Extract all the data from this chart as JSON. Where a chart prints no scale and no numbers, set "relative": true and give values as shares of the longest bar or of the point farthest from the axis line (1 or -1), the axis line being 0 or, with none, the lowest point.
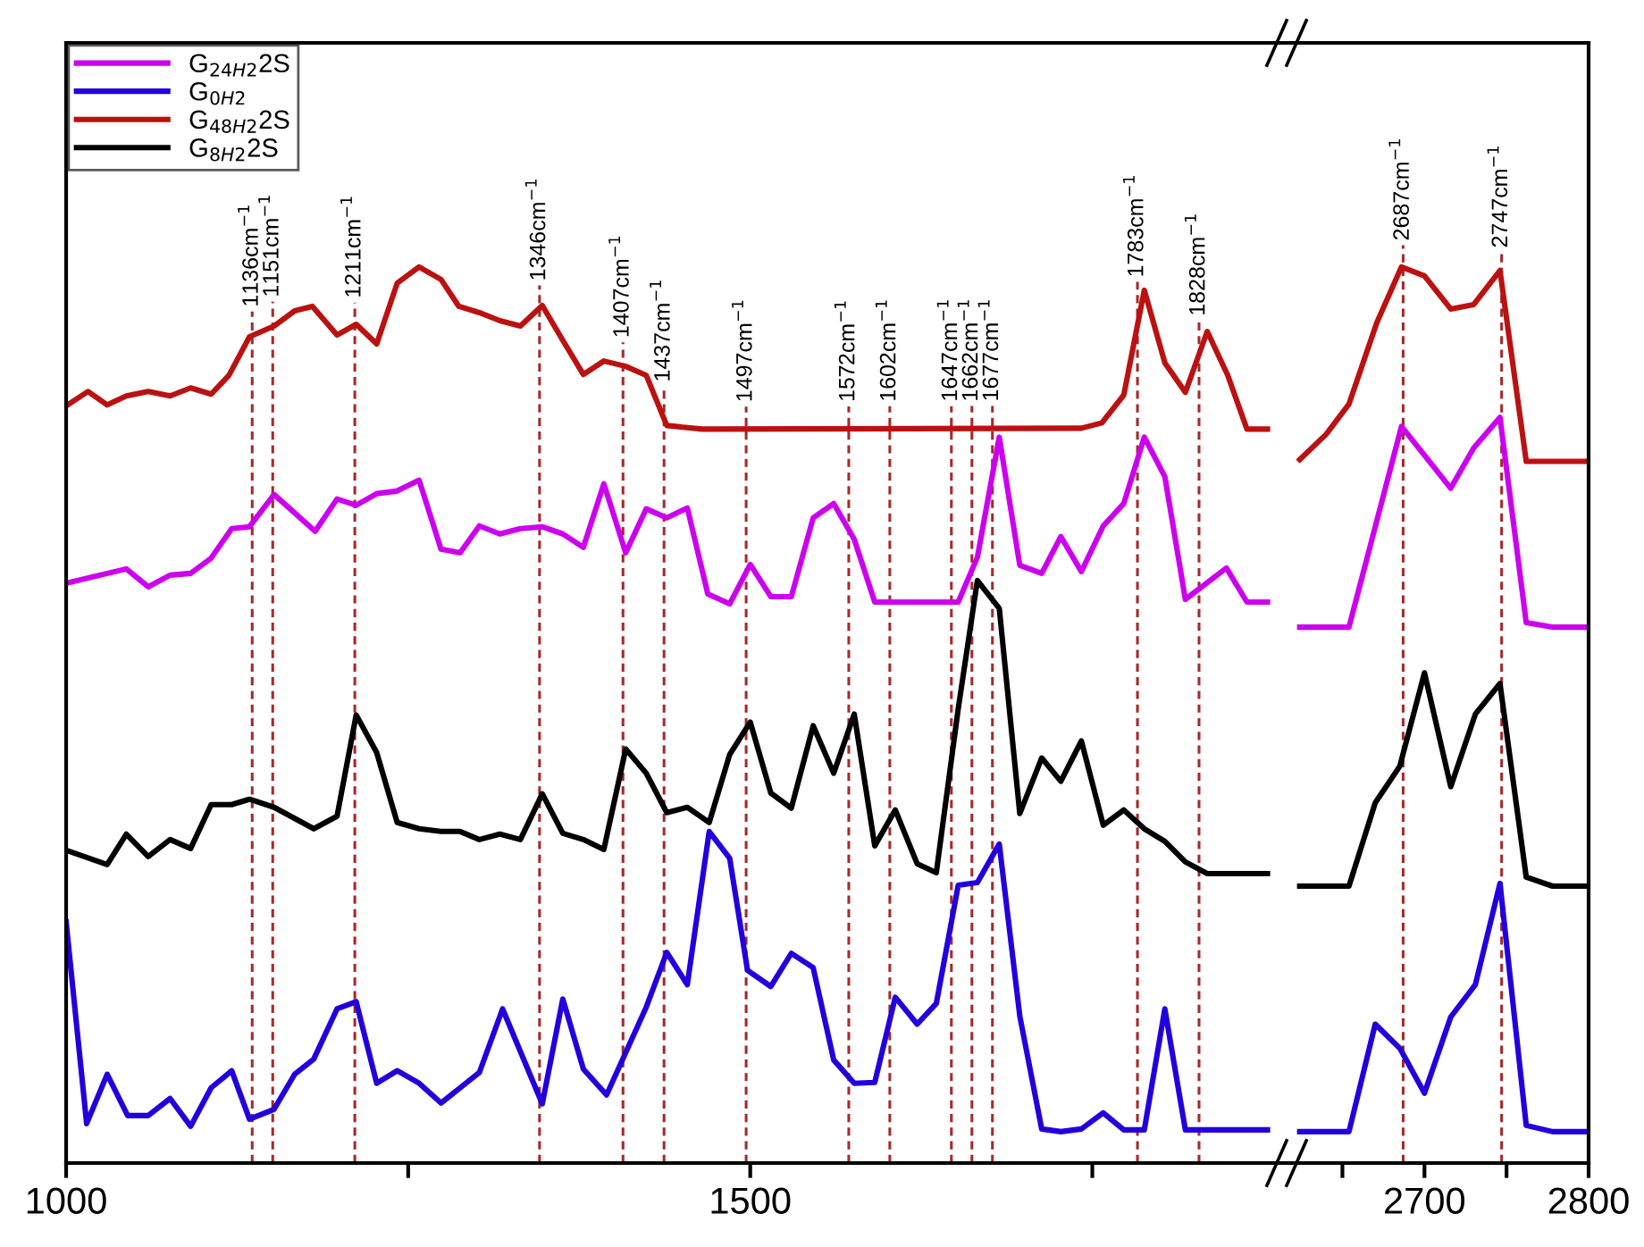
{
  "chart_data": [
    {
      "type": "line",
      "relative": true,
      "legend": "top left",
      "line_style": "solid",
      "marker": "none",
      "grid": false,
      "xlim": [
        1000,
        1892
      ],
      "xticks": [
        1000,
        {
          "value": 1250,
          "label": null
        },
        1500,
        {
          "value": 1750,
          "label": null
        }
      ],
      "series": [
        {
          "name": "G$_{24H2}$2S",
          "color": "#cc00ee",
          "x": [
            1000,
            1044,
            1060,
            1076,
            1091,
            1106,
            1121,
            1134,
            1152,
            1182,
            1198,
            1212,
            1227,
            1242,
            1258,
            1274,
            1288,
            1302,
            1317,
            1332,
            1348,
            1363,
            1378,
            1393,
            1409,
            1424,
            1439,
            1454,
            1469,
            1485,
            1500,
            1515,
            1530,
            1546,
            1561,
            1576,
            1591,
            1652,
            1666,
            1682,
            1697,
            1713,
            1727,
            1742,
            1758,
            1773,
            1788,
            1803,
            1818,
            1848,
            1863,
            1878
          ],
          "values": [
            0.647,
            0.663,
            0.643,
            0.656,
            0.658,
            0.675,
            0.708,
            0.71,
            0.746,
            0.705,
            0.741,
            0.734,
            0.747,
            0.75,
            0.762,
            0.685,
            0.681,
            0.711,
            0.702,
            0.708,
            0.71,
            0.702,
            0.687,
            0.758,
            0.681,
            0.73,
            0.72,
            0.731,
            0.635,
            0.624,
            0.668,
            0.632,
            0.632,
            0.72,
            0.736,
            0.696,
            0.626,
            0.626,
            0.676,
            0.81,
            0.667,
            0.658,
            0.699,
            0.66,
            0.711,
            0.736,
            0.81,
            0.766,
            0.629,
            0.664,
            0.626,
            0.626
          ]
        },
        {
          "name": "G$_{0H2}$",
          "color": "#2200dd",
          "x": [
            1000,
            1015,
            1030,
            1045,
            1060,
            1076,
            1091,
            1106,
            1121,
            1134,
            1152,
            1167,
            1181,
            1198,
            1212,
            1227,
            1242,
            1258,
            1274,
            1302,
            1319,
            1348,
            1363,
            1378,
            1395,
            1424,
            1439,
            1454,
            1470,
            1485,
            1498,
            1515,
            1530,
            1546,
            1561,
            1576,
            1591,
            1606,
            1622,
            1636,
            1652,
            1666,
            1682,
            1697,
            1713,
            1727,
            1742,
            1758,
            1773,
            1788,
            1803,
            1818,
            1878
          ],
          "values": [
            0.269,
            0.044,
            0.099,
            0.053,
            0.053,
            0.072,
            0.041,
            0.084,
            0.103,
            0.049,
            0.06,
            0.099,
            0.116,
            0.172,
            0.18,
            0.089,
            0.103,
            0.089,
            0.067,
            0.101,
            0.172,
            0.066,
            0.183,
            0.105,
            0.076,
            0.174,
            0.235,
            0.199,
            0.37,
            0.34,
            0.215,
            0.197,
            0.234,
            0.218,
            0.115,
            0.089,
            0.09,
            0.185,
            0.155,
            0.178,
            0.31,
            0.313,
            0.356,
            0.164,
            0.038,
            0.035,
            0.038,
            0.056,
            0.037,
            0.037,
            0.172,
            0.037,
            0.037
          ]
        },
        {
          "name": "G$_{48H2}$2S",
          "color": "#bb1111",
          "x": [
            1000,
            1016,
            1030,
            1044,
            1060,
            1076,
            1091,
            1106,
            1119,
            1134,
            1152,
            1167,
            1180,
            1198,
            1212,
            1227,
            1242,
            1258,
            1274,
            1287,
            1302,
            1317,
            1332,
            1348,
            1363,
            1378,
            1393,
            1409,
            1424,
            1439,
            1465,
            1742,
            1757,
            1773,
            1788,
            1803,
            1818,
            1834,
            1849,
            1863,
            1878
          ],
          "values": [
            0.845,
            0.861,
            0.846,
            0.856,
            0.861,
            0.856,
            0.865,
            0.858,
            0.879,
            0.922,
            0.934,
            0.951,
            0.956,
            0.924,
            0.936,
            0.914,
            0.982,
            1.0,
            0.986,
            0.956,
            0.949,
            0.94,
            0.934,
            0.957,
            0.918,
            0.88,
            0.895,
            0.889,
            0.879,
            0.823,
            0.819,
            0.82,
            0.826,
            0.857,
            0.974,
            0.893,
            0.86,
            0.928,
            0.879,
            0.819,
            0.819
          ]
        },
        {
          "name": "G$_{8H2}$2S",
          "color": "#000000",
          "x": [
            1000,
            1030,
            1044,
            1060,
            1076,
            1091,
            1106,
            1121,
            1134,
            1152,
            1181,
            1198,
            1212,
            1227,
            1242,
            1258,
            1274,
            1288,
            1302,
            1317,
            1332,
            1348,
            1363,
            1378,
            1393,
            1409,
            1424,
            1439,
            1454,
            1470,
            1485,
            1500,
            1515,
            1530,
            1546,
            1561,
            1576,
            1591,
            1606,
            1622,
            1636,
            1652,
            1666,
            1682,
            1697,
            1713,
            1727,
            1742,
            1758,
            1773,
            1788,
            1803,
            1818,
            1834,
            1878
          ],
          "values": [
            0.349,
            0.333,
            0.367,
            0.342,
            0.361,
            0.351,
            0.4,
            0.4,
            0.406,
            0.397,
            0.373,
            0.387,
            0.5,
            0.458,
            0.38,
            0.373,
            0.37,
            0.37,
            0.361,
            0.367,
            0.361,
            0.412,
            0.368,
            0.361,
            0.35,
            0.462,
            0.435,
            0.391,
            0.397,
            0.38,
            0.456,
            0.492,
            0.413,
            0.396,
            0.488,
            0.435,
            0.501,
            0.354,
            0.394,
            0.334,
            0.324,
            0.507,
            0.65,
            0.619,
            0.39,
            0.452,
            0.426,
            0.471,
            0.377,
            0.394,
            0.373,
            0.359,
            0.336,
            0.323,
            0.323
          ]
        }
      ],
      "ref_lines": [
        {
          "axis": "x",
          "value": 1136,
          "label": "1136cm$^{−1}$",
          "color": "#a52a2a",
          "line_style": "dashed"
        },
        {
          "axis": "x",
          "value": 1151,
          "label": "1151cm$^{−1}$",
          "color": "#a52a2a",
          "line_style": "dashed"
        },
        {
          "axis": "x",
          "value": 1211,
          "label": "1211cm$^{−1}$",
          "color": "#a52a2a",
          "line_style": "dashed"
        },
        {
          "axis": "x",
          "value": 1346,
          "label": "1346cm$^{−1}$",
          "color": "#a52a2a",
          "line_style": "dashed"
        },
        {
          "axis": "x",
          "value": 1407,
          "label": "1407cm$^{−1}$",
          "color": "#a52a2a",
          "line_style": "dashed"
        },
        {
          "axis": "x",
          "value": 1437,
          "label": "1437cm$^{−1}$",
          "color": "#a52a2a",
          "line_style": "dashed"
        },
        {
          "axis": "x",
          "value": 1497,
          "label": "1497cm$^{−1}$",
          "color": "#a52a2a",
          "line_style": "dashed"
        },
        {
          "axis": "x",
          "value": 1572,
          "label": "1572cm$^{−1}$",
          "color": "#a52a2a",
          "line_style": "dashed"
        },
        {
          "axis": "x",
          "value": 1602,
          "label": "1602cm$^{−1}$",
          "color": "#a52a2a",
          "line_style": "dashed"
        },
        {
          "axis": "x",
          "value": 1647,
          "label": "1647cm$^{−1}$",
          "color": "#a52a2a",
          "line_style": "dashed"
        },
        {
          "axis": "x",
          "value": 1662,
          "label": "1662cm$^{−1}$",
          "color": "#a52a2a",
          "line_style": "dashed"
        },
        {
          "axis": "x",
          "value": 1677,
          "label": "1677cm$^{−1}$",
          "color": "#a52a2a",
          "line_style": "dashed"
        },
        {
          "axis": "x",
          "value": 1783,
          "label": "1783cm$^{−1}$",
          "color": "#a52a2a",
          "line_style": "dashed"
        },
        {
          "axis": "x",
          "value": 1828,
          "label": "1828cm$^{−1}$",
          "color": "#a52a2a",
          "line_style": "dashed"
        }
      ]
    },
    {
      "type": "line",
      "relative": true,
      "legend": false,
      "line_style": "solid",
      "marker": "none",
      "grid": false,
      "xlim": [
        2616,
        2800
      ],
      "xticks": [
        {
          "value": 2650,
          "label": null
        },
        2700,
        {
          "value": 2750,
          "label": null
        },
        2800
      ],
      "series": [
        {
          "color": "#cc00ee",
          "x": [
            2624,
            2654,
            2686,
            2716,
            2730,
            2746,
            2762,
            2778,
            2800
          ],
          "values": [
            0.598,
            0.598,
            0.822,
            0.753,
            0.798,
            0.832,
            0.603,
            0.598,
            0.598
          ]
        },
        {
          "color": "#2200dd",
          "x": [
            2624,
            2654,
            2670,
            2685,
            2700,
            2716,
            2731,
            2746,
            2762,
            2778,
            2800
          ],
          "values": [
            0.035,
            0.035,
            0.155,
            0.128,
            0.078,
            0.163,
            0.199,
            0.312,
            0.042,
            0.035,
            0.035
          ]
        },
        {
          "color": "#bb1111",
          "x": [
            2624,
            2640,
            2654,
            2671,
            2686,
            2700,
            2716,
            2730,
            2746,
            2762,
            2800
          ],
          "values": [
            0.785,
            0.813,
            0.847,
            0.938,
            1.0,
            0.99,
            0.953,
            0.958,
            0.996,
            0.783,
            0.783
          ]
        },
        {
          "color": "#000000",
          "x": [
            2624,
            2654,
            2670,
            2685,
            2700,
            2716,
            2731,
            2746,
            2762,
            2778,
            2800
          ],
          "values": [
            0.309,
            0.309,
            0.402,
            0.443,
            0.547,
            0.42,
            0.501,
            0.535,
            0.319,
            0.309,
            0.309
          ]
        }
      ],
      "ref_lines": [
        {
          "axis": "x",
          "value": 2687,
          "label": "2687cm$^{−1}$",
          "color": "#a52a2a",
          "line_style": "dashed"
        },
        {
          "axis": "x",
          "value": 2747,
          "label": "2747cm$^{−1}$",
          "color": "#a52a2a",
          "line_style": "dashed"
        }
      ]
    }
  ]
}
